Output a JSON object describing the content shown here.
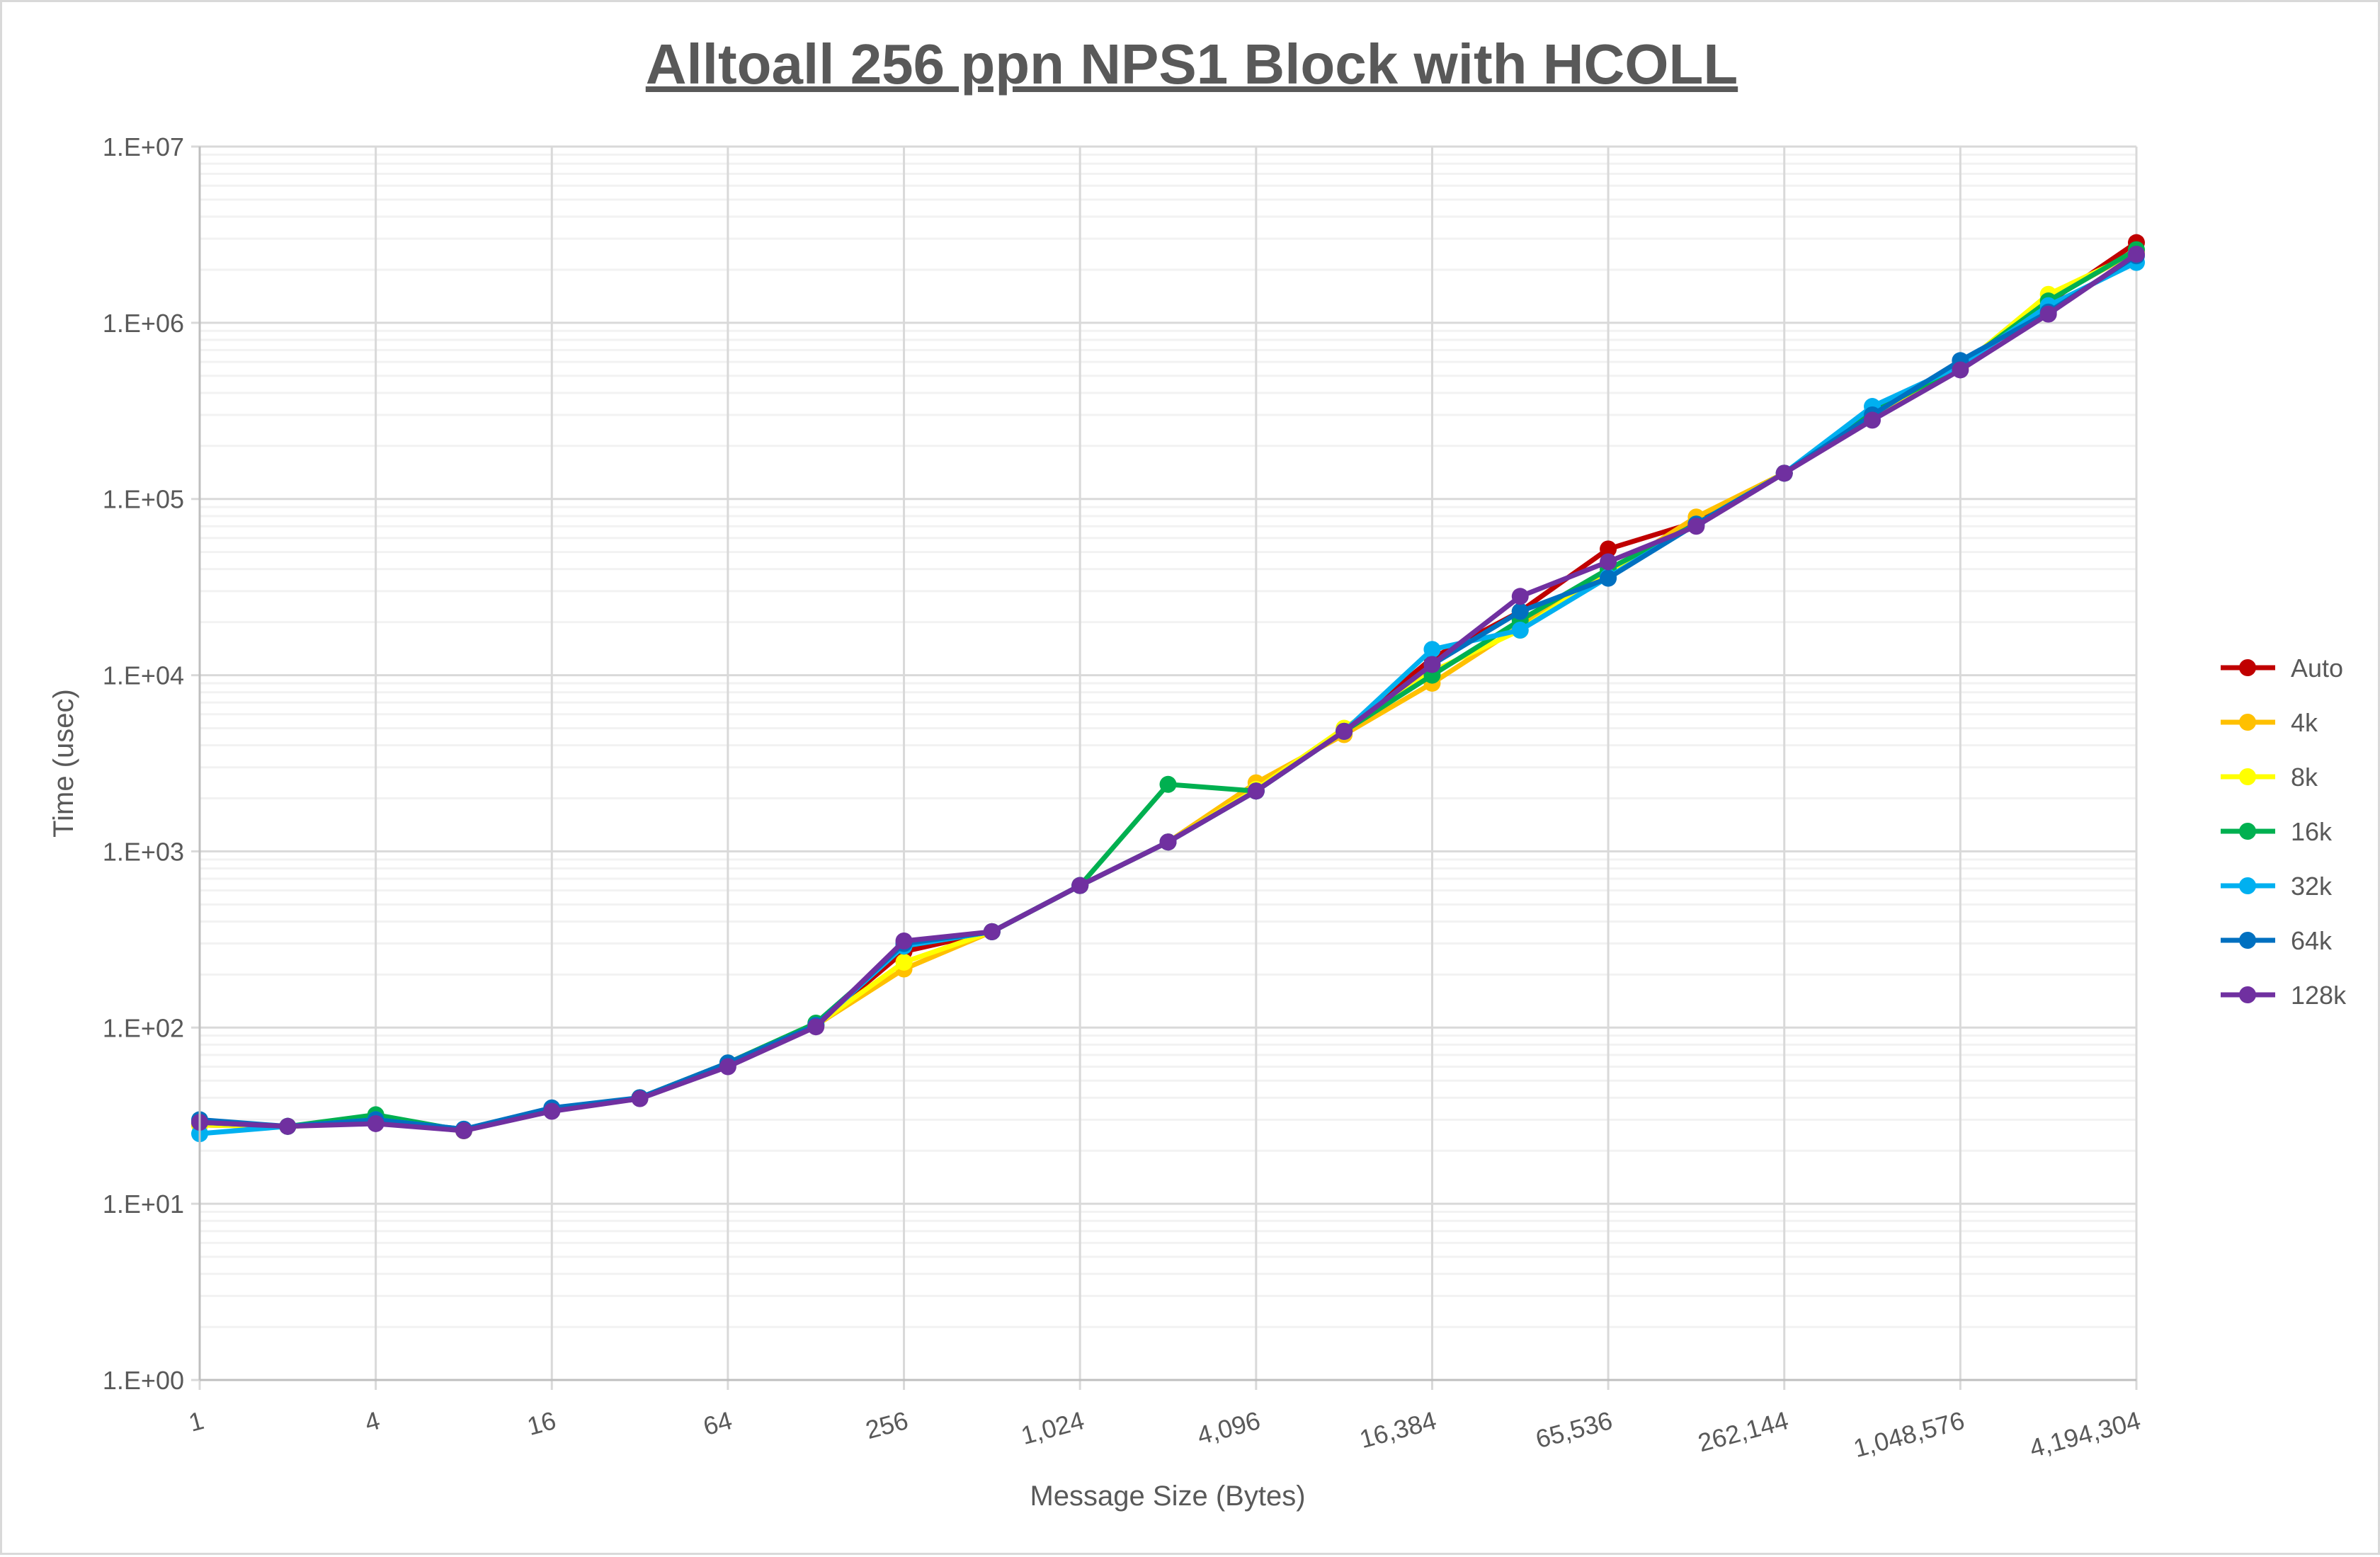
{
  "chart_data": {
    "type": "line",
    "title": "Alltoall 256 ppn NPS1 Block with HCOLL",
    "xlabel": "Message Size (Bytes)",
    "ylabel": "Time (usec)",
    "x_scale": "log2",
    "y_scale": "log10",
    "ylim": [
      1,
      10000000
    ],
    "grid": true,
    "legend_position": "right",
    "x": [
      1,
      2,
      4,
      8,
      16,
      32,
      64,
      128,
      256,
      512,
      1024,
      2048,
      4096,
      8192,
      16384,
      32768,
      65536,
      131072,
      262144,
      524288,
      1048576,
      2097152,
      4194304
    ],
    "x_tick_labels": [
      "1",
      "4",
      "16",
      "64",
      "256",
      "1,024",
      "4,096",
      "16,384",
      "65,536",
      "262,144",
      "1,048,576",
      "4,194,304"
    ],
    "y_tick_labels": [
      "1.E+00",
      "1.E+01",
      "1.E+02",
      "1.E+03",
      "1.E+04",
      "1.E+05",
      "1.E+06",
      "1.E+07"
    ],
    "series": [
      {
        "name": "Auto",
        "color": "#c00000",
        "values": [
          28,
          27.5,
          29,
          26,
          34,
          40,
          62,
          103,
          270,
          350,
          640,
          1130,
          2200,
          4800,
          12500,
          23000,
          52000,
          74000,
          140000,
          300000,
          560000,
          1300000,
          2850000
        ]
      },
      {
        "name": "4k",
        "color": "#ffc000",
        "values": [
          28,
          27.5,
          29,
          26,
          34,
          40,
          62,
          103,
          215,
          350,
          640,
          1130,
          2450,
          4600,
          9000,
          19000,
          38000,
          79000,
          140000,
          300000,
          560000,
          1350000,
          2550000
        ]
      },
      {
        "name": "8k",
        "color": "#ffff00",
        "values": [
          28,
          27.5,
          29,
          26,
          34,
          40,
          62,
          103,
          235,
          350,
          640,
          1130,
          2250,
          5000,
          10500,
          18000,
          39000,
          72000,
          140000,
          300000,
          560000,
          1450000,
          2500000
        ]
      },
      {
        "name": "16k",
        "color": "#00b050",
        "values": [
          29,
          27.5,
          32,
          26,
          34,
          40,
          63,
          106,
          290,
          350,
          640,
          2400,
          2200,
          4800,
          10000,
          20500,
          40000,
          72000,
          140000,
          310000,
          570000,
          1330000,
          2600000
        ]
      },
      {
        "name": "32k",
        "color": "#00b0f0",
        "values": [
          25,
          27.5,
          30,
          26.5,
          34,
          40,
          62,
          103,
          290,
          350,
          640,
          1130,
          2200,
          4800,
          14000,
          18000,
          36000,
          72000,
          140000,
          335000,
          570000,
          1250000,
          2200000
        ]
      },
      {
        "name": "64k",
        "color": "#0070c0",
        "values": [
          30,
          27.5,
          30,
          26.5,
          35,
          40,
          63,
          103,
          300,
          350,
          640,
          1130,
          2200,
          4800,
          11500,
          23000,
          35500,
          72000,
          140000,
          300000,
          610000,
          1150000,
          2400000
        ]
      },
      {
        "name": "128k",
        "color": "#7030a0",
        "values": [
          29,
          27.5,
          28.5,
          26,
          33.5,
          39.5,
          60,
          101,
          310,
          350,
          640,
          1130,
          2200,
          4800,
          11500,
          28000,
          44000,
          70000,
          140000,
          280000,
          540000,
          1120000,
          2450000
        ]
      }
    ]
  }
}
